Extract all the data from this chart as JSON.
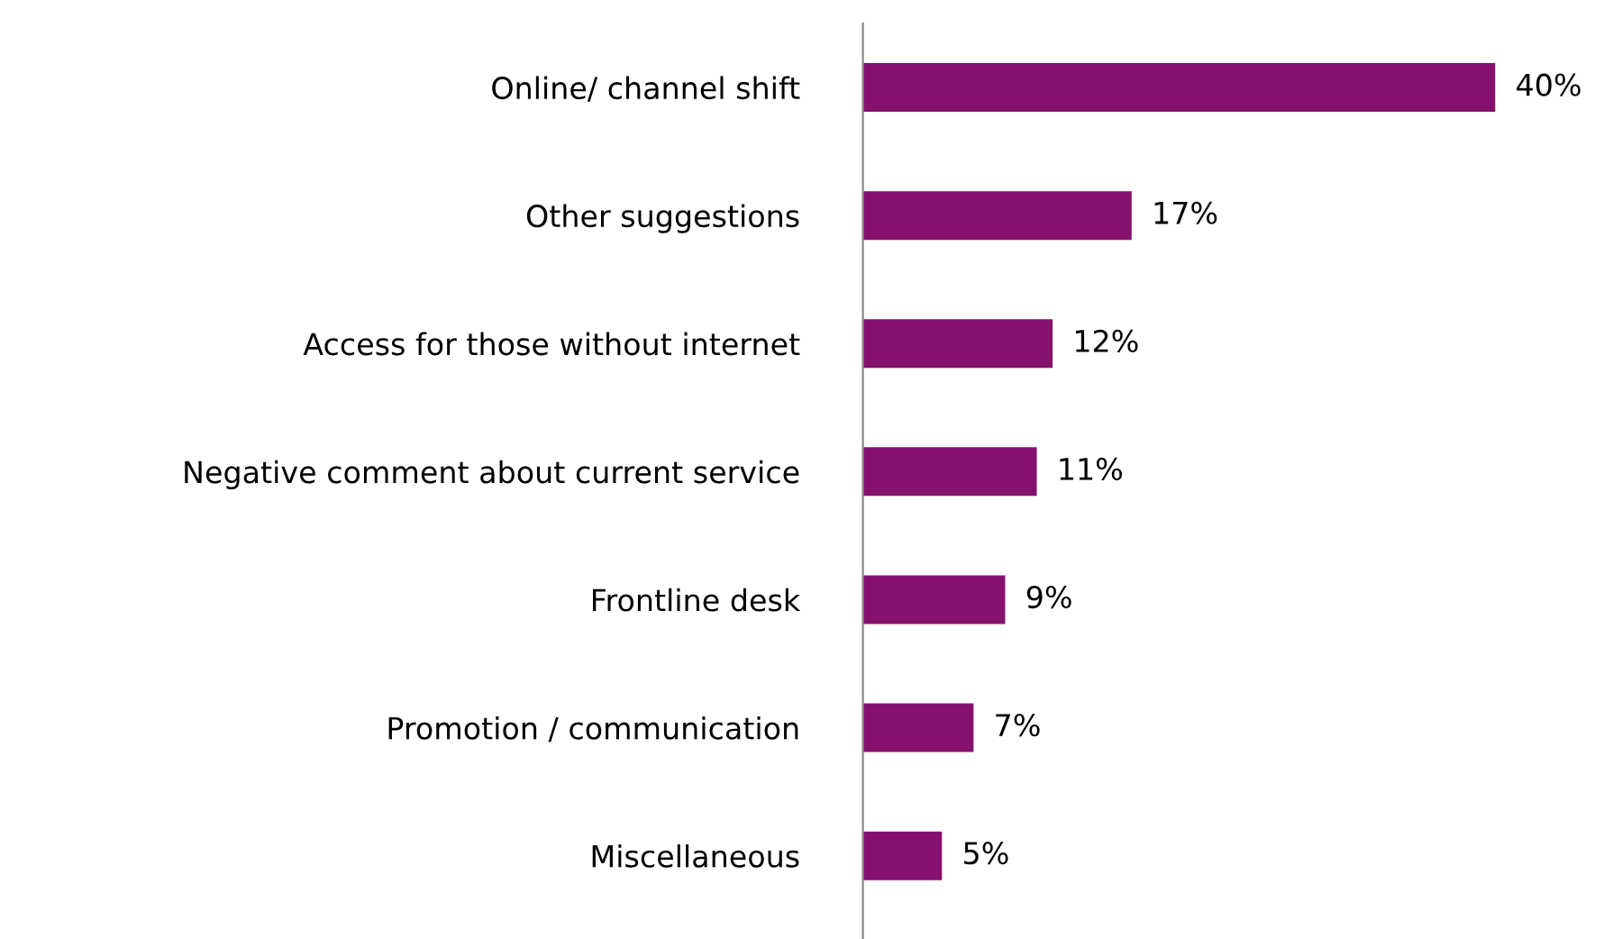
{
  "chart_data": {
    "type": "bar",
    "orientation": "horizontal",
    "categories": [
      "Online/ channel shift",
      "Other suggestions",
      "Access for those without internet",
      "Negative comment about current service",
      "Frontline desk",
      "Promotion / communication",
      "Miscellaneous"
    ],
    "values": [
      40,
      17,
      12,
      11,
      9,
      7,
      5
    ],
    "value_labels": [
      "40%",
      "17%",
      "12%",
      "11%",
      "9%",
      "7%",
      "5%"
    ],
    "color": "#86106e",
    "grid": false,
    "legend": false
  }
}
